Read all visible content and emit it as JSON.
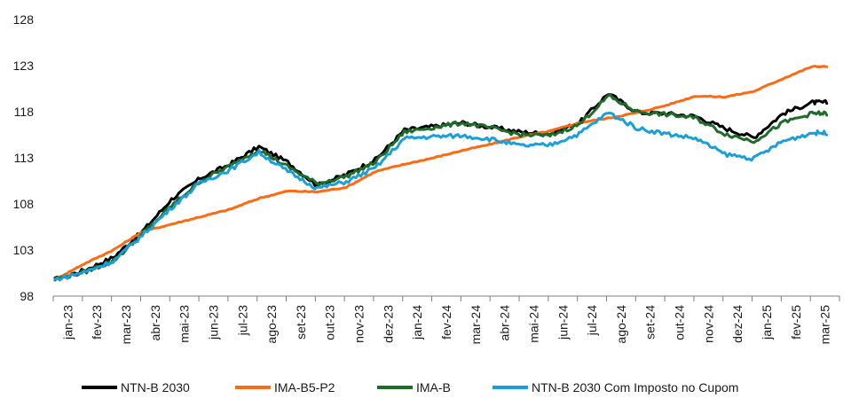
{
  "chart_data": {
    "type": "line",
    "title": "",
    "xlabel": "",
    "ylabel": "",
    "ylim": [
      98,
      128
    ],
    "yticks": [
      98,
      103,
      108,
      113,
      118,
      123,
      128
    ],
    "categories": [
      "jan-23",
      "fev-23",
      "mar-23",
      "abr-23",
      "mai-23",
      "jun-23",
      "jul-23",
      "ago-23",
      "set-23",
      "out-23",
      "nov-23",
      "dez-23",
      "jan-24",
      "fev-24",
      "mar-24",
      "abr-24",
      "mai-24",
      "jun-24",
      "jul-24",
      "ago-24",
      "set-24",
      "out-24",
      "nov-24",
      "dez-24",
      "jan-25",
      "fev-25",
      "mar-25"
    ],
    "legend_position": "bottom",
    "grid": false,
    "series": [
      {
        "name": "NTN-B 2030",
        "color": "#000000",
        "values": [
          99.8,
          100.8,
          102.2,
          105.0,
          108.5,
          110.8,
          112.3,
          114.2,
          112.5,
          110.0,
          111.2,
          112.8,
          116.0,
          116.4,
          116.8,
          116.3,
          115.8,
          115.6,
          116.8,
          120.0,
          117.9,
          117.8,
          117.5,
          116.2,
          115.2,
          117.8,
          119.0
        ]
      },
      {
        "name": "IMA-B5-P2",
        "color": "#ff6a13",
        "values": [
          99.8,
          101.5,
          103.0,
          105.0,
          105.8,
          106.6,
          107.4,
          108.6,
          109.4,
          109.3,
          109.8,
          111.5,
          112.3,
          113.0,
          113.8,
          114.5,
          115.3,
          115.9,
          116.8,
          117.3,
          117.9,
          118.7,
          119.7,
          119.6,
          120.2,
          121.6,
          122.9
        ]
      },
      {
        "name": "IMA-B",
        "color": "#1e6b2a",
        "values": [
          99.8,
          100.6,
          101.8,
          104.7,
          107.8,
          110.5,
          112.1,
          113.9,
          112.0,
          110.2,
          111.0,
          112.5,
          115.8,
          116.3,
          116.8,
          116.2,
          115.5,
          115.4,
          116.6,
          119.7,
          118.0,
          117.7,
          117.3,
          115.6,
          114.8,
          116.8,
          117.8
        ]
      },
      {
        "name": "NTN-B 2030 Com Imposto no Cupom",
        "color": "#1a9fd8",
        "values": [
          99.8,
          100.6,
          101.8,
          104.6,
          107.6,
          110.3,
          111.7,
          113.6,
          111.5,
          109.7,
          110.4,
          111.9,
          115.1,
          115.3,
          115.4,
          115.0,
          114.3,
          114.4,
          115.6,
          117.9,
          116.2,
          115.6,
          115.1,
          113.4,
          112.9,
          114.8,
          115.7
        ]
      }
    ]
  }
}
